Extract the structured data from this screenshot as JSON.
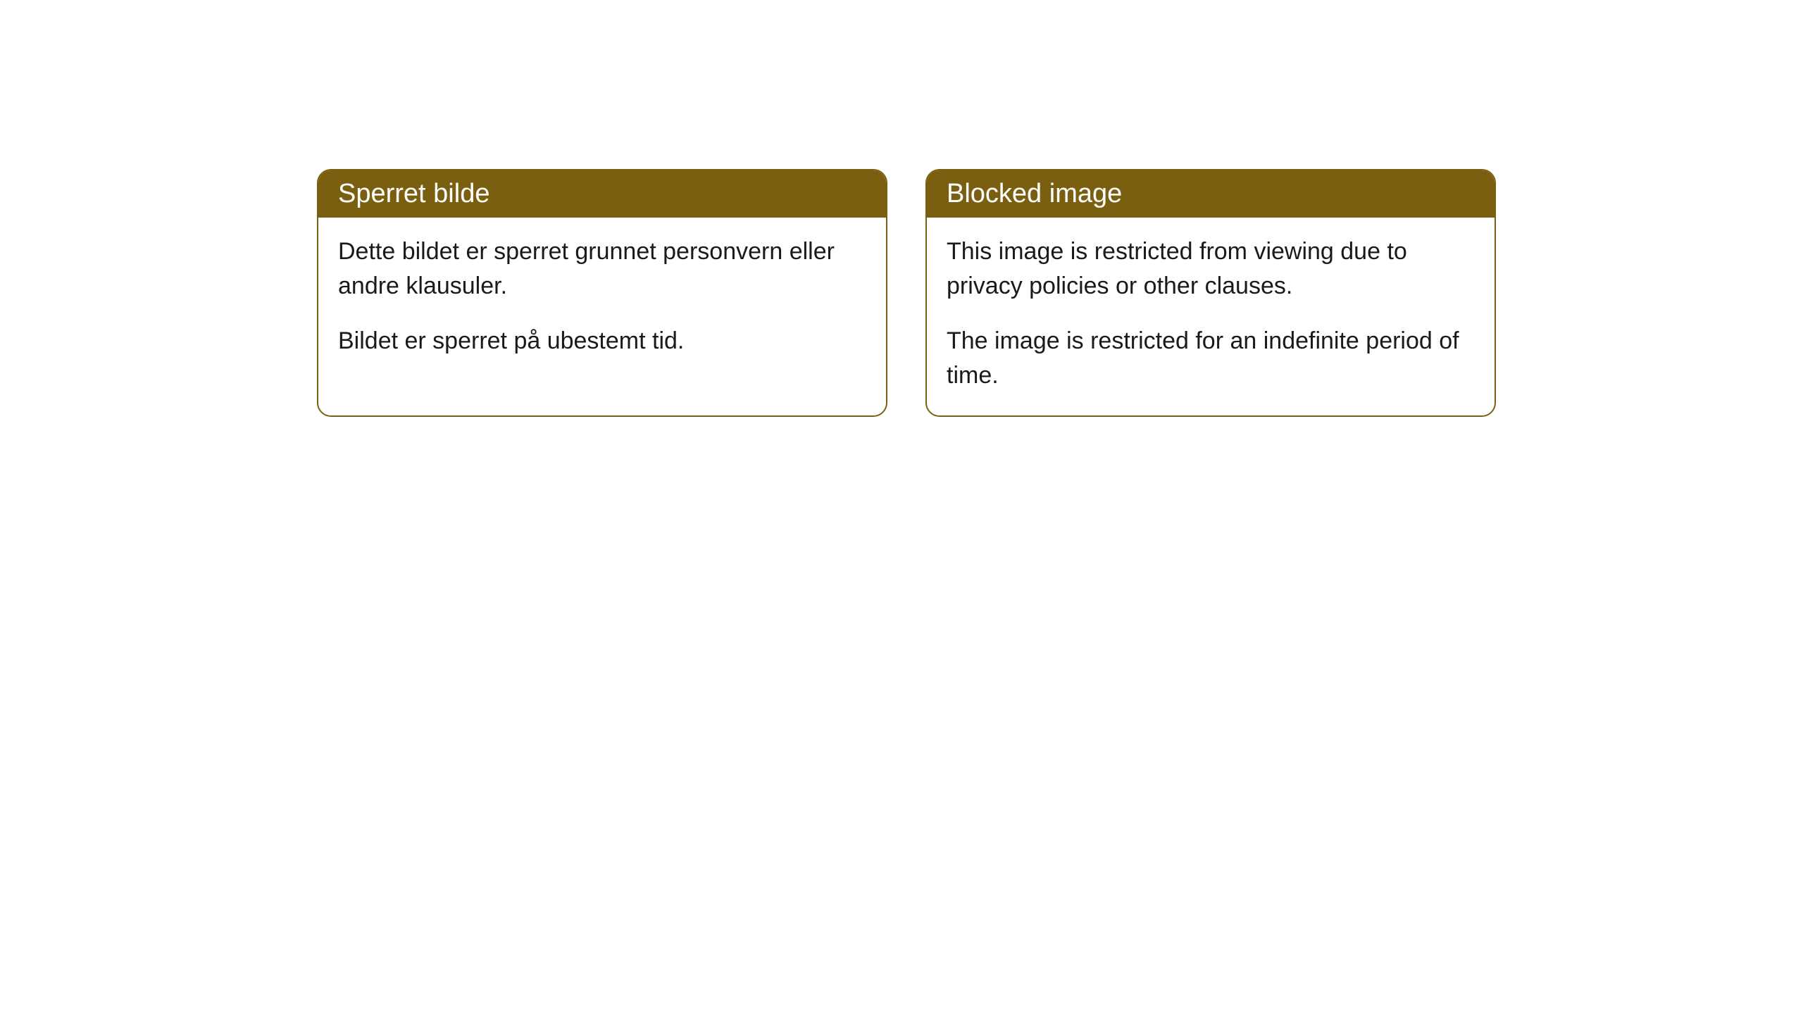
{
  "cards": [
    {
      "title": "Sperret bilde",
      "paragraph1": "Dette bildet er sperret grunnet personvern eller andre klausuler.",
      "paragraph2": "Bildet er sperret på ubestemt tid."
    },
    {
      "title": "Blocked image",
      "paragraph1": "This image is restricted from viewing due to privacy policies or other clauses.",
      "paragraph2": "The image is restricted for an indefinite period of time."
    }
  ],
  "colors": {
    "header_bg": "#7b5f10",
    "header_text": "#ffffff",
    "body_text": "#1a1a1a",
    "border": "#7b5f10",
    "page_bg": "#ffffff"
  }
}
